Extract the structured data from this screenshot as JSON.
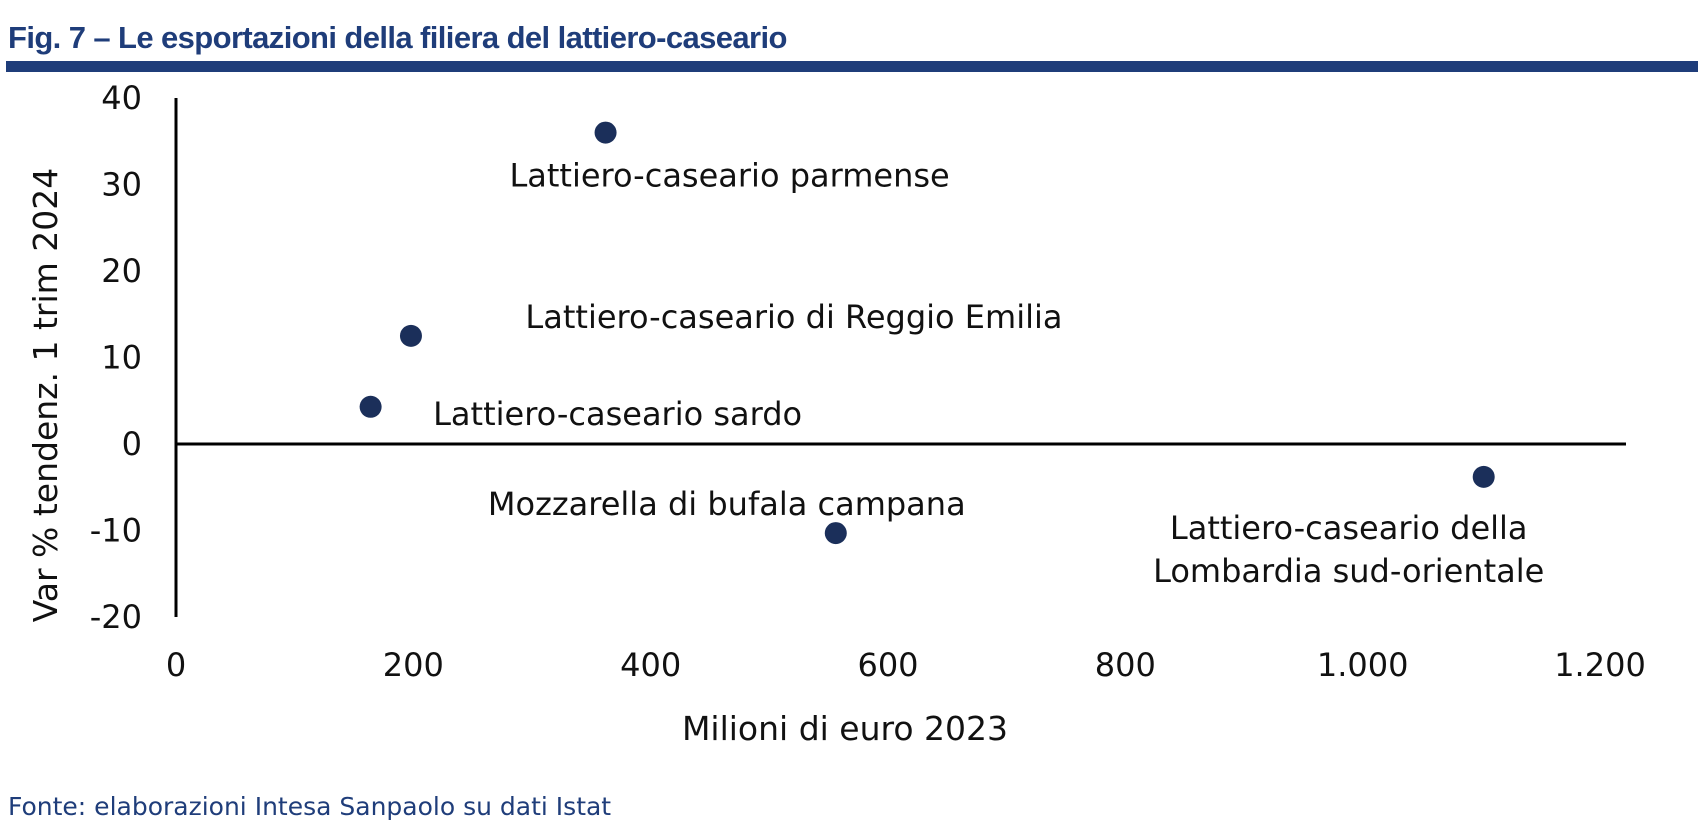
{
  "figure": {
    "title": "Fig. 7 – Le esportazioni della filiera del lattiero-caseario",
    "source": "Fonte: elaborazioni Intesa Sanpaolo su dati Istat"
  },
  "colors": {
    "accent": "#1f3d7a",
    "marker": "#1b2f5a",
    "axis": "#000000"
  },
  "chart_data": {
    "type": "scatter",
    "title": "",
    "xlabel": "Milioni di euro 2023",
    "ylabel": "Var % tendenz. 1 trim 2024",
    "xlim": [
      0,
      1200
    ],
    "ylim": [
      -20,
      40
    ],
    "x_ticks": [
      0,
      200,
      400,
      600,
      800,
      1000,
      1200
    ],
    "x_tick_labels": [
      "0",
      "200",
      "400",
      "600",
      "800",
      "1.000",
      "1.200"
    ],
    "y_ticks": [
      -20,
      -10,
      0,
      10,
      20,
      30,
      40
    ],
    "y_tick_labels": [
      "-20",
      "-10",
      "0",
      "10",
      "20",
      "30",
      "40"
    ],
    "grid": false,
    "legend": "none",
    "points": [
      {
        "label": [
          "Lattiero-caseario parmense"
        ],
        "x": 362,
        "y": 36
      },
      {
        "label": [
          "Lattiero-caseario di Reggio Emilia"
        ],
        "x": 198,
        "y": 12.5
      },
      {
        "label": [
          "Lattiero-caseario sardo"
        ],
        "x": 164,
        "y": 4.3
      },
      {
        "label": [
          "Mozzarella di bufala campana"
        ],
        "x": 556,
        "y": -10.3
      },
      {
        "label": [
          "Lattiero-caseario della",
          "Lombardia sud-orientale"
        ],
        "x": 1102,
        "y": -3.8
      }
    ]
  }
}
